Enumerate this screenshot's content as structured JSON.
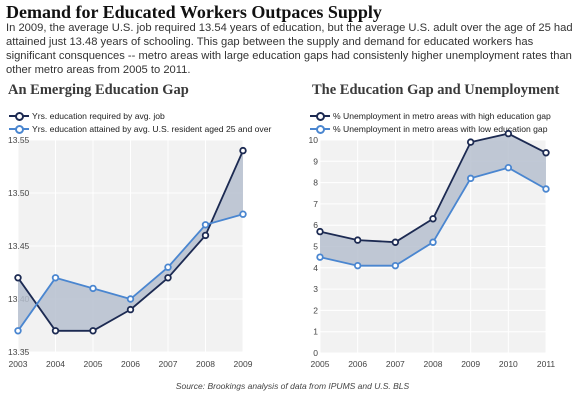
{
  "title": "Demand for Educated Workers Outpaces Supply",
  "description": "In 2009, the average U.S. job required 13.54 years of education, but the average U.S. adult over the age of 25 had attained just 13.48 years of schooling. This gap between the supply and demand for educated workers has significant consquences -- metro areas with large education gaps had consistenly higher unemployment rates than other metro areas from 2005 to 2011.",
  "source": "Source: Brookings analysis of data from IPUMS and U.S. BLS",
  "colors": {
    "dark": "#1c2a52",
    "light": "#4a86d0",
    "fill": "#b6bfcf",
    "plot_bg": "#f2f2f2"
  },
  "chart_data": [
    {
      "type": "line",
      "title": "An Emerging Education Gap",
      "x": [
        2003,
        2004,
        2005,
        2006,
        2007,
        2008,
        2009
      ],
      "ylim": [
        13.35,
        13.55
      ],
      "yticks": [
        "13.35",
        "13.40",
        "13.45",
        "13.50",
        "13.55"
      ],
      "grid": true,
      "legend_position": "top-left",
      "series": [
        {
          "name": "Yrs. education required by avg. job",
          "values": [
            13.42,
            13.37,
            13.37,
            13.39,
            13.42,
            13.46,
            13.54
          ]
        },
        {
          "name": "Yrs. education attained by avg. U.S. resident aged 25 and over",
          "values": [
            13.37,
            13.42,
            13.41,
            13.4,
            13.43,
            13.47,
            13.48
          ]
        }
      ]
    },
    {
      "type": "line",
      "title": "The Education Gap and Unemployment",
      "x": [
        2005,
        2006,
        2007,
        2008,
        2009,
        2010,
        2011
      ],
      "ylim": [
        0,
        10
      ],
      "yticks": [
        "0",
        "1",
        "2",
        "3",
        "4",
        "5",
        "6",
        "7",
        "8",
        "9",
        "10"
      ],
      "grid": true,
      "legend_position": "top-left",
      "series": [
        {
          "name": "% Unemployment in metro areas with high education gap",
          "values": [
            5.7,
            5.3,
            5.2,
            6.3,
            9.9,
            10.3,
            9.4
          ]
        },
        {
          "name": "% Unemployment in metro areas with low education gap",
          "values": [
            4.5,
            4.1,
            4.1,
            5.2,
            8.2,
            8.7,
            7.7
          ]
        }
      ]
    }
  ]
}
